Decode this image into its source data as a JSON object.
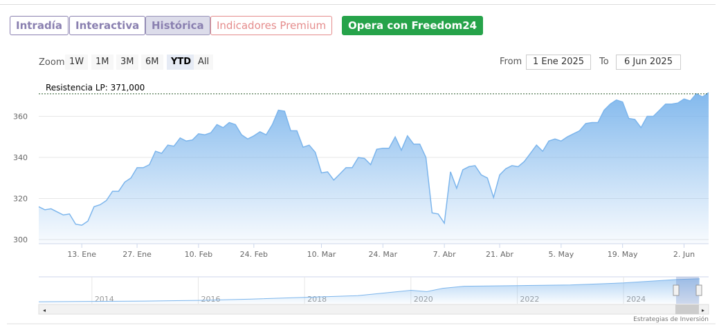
{
  "tabs": [
    "Intradía",
    "Interactiva",
    "Histórica",
    "Indicadores Premium",
    "Opera con Freedom24"
  ],
  "selected_tab": 2,
  "zoom": {
    "label": "Zoom",
    "buttons": [
      "1W",
      "1M",
      "3M",
      "6M",
      "YTD",
      "All"
    ],
    "selected": 4
  },
  "range": {
    "from_label": "From",
    "from": "1 Ene 2025",
    "to_label": "To",
    "to": "6 Jun 2025"
  },
  "credits": "Estrategias de Inversión",
  "chart_data": [
    {
      "type": "area",
      "color": "#7cb5ec",
      "categories": [
        null,
        null,
        null,
        null,
        null,
        null,
        null,
        "13. Ene",
        null,
        null,
        null,
        null,
        null,
        null,
        null,
        null,
        "27. Ene",
        null,
        null,
        null,
        null,
        null,
        null,
        null,
        null,
        null,
        "10. Feb",
        null,
        null,
        null,
        null,
        null,
        null,
        null,
        null,
        "24. Feb",
        null,
        null,
        null,
        null,
        null,
        null,
        null,
        null,
        null,
        null,
        "10. Mar",
        null,
        null,
        null,
        null,
        null,
        null,
        null,
        null,
        null,
        "24. Mar",
        null,
        null,
        null,
        null,
        null,
        null,
        null,
        null,
        null,
        "7. Abr",
        null,
        null,
        null,
        null,
        null,
        null,
        null,
        null,
        "21. Abr",
        null,
        null,
        null,
        null,
        null,
        null,
        null,
        null,
        null,
        "5. May",
        null,
        null,
        null,
        null,
        null,
        null,
        null,
        null,
        null,
        "19. May",
        null,
        null,
        null,
        null,
        null,
        null,
        null,
        null,
        null,
        "2. Jun",
        null,
        null,
        null,
        null
      ],
      "values": [
        316,
        314.5,
        315,
        313.5,
        312,
        312.5,
        307.5,
        307,
        309,
        316,
        317,
        319,
        323.5,
        323.5,
        328,
        330,
        335,
        335,
        336.5,
        343,
        342,
        346,
        345.5,
        349.5,
        348,
        348.5,
        351.5,
        351,
        352,
        356,
        354.5,
        357,
        356,
        351,
        349,
        350.5,
        352.5,
        351,
        356,
        363,
        362.5,
        353,
        353,
        345,
        346,
        342.5,
        332.5,
        333,
        329,
        332,
        335,
        335,
        340,
        339.5,
        336.5,
        344,
        344.5,
        344.5,
        350,
        343.5,
        350.5,
        346.5,
        346.5,
        340,
        313,
        312.5,
        308,
        333,
        325,
        334,
        335.5,
        336,
        331.5,
        330,
        320.5,
        331.5,
        334.5,
        336,
        335.5,
        338,
        342,
        346,
        343,
        348,
        349,
        348,
        350,
        351.5,
        353,
        356.5,
        357,
        357,
        363,
        366,
        368,
        367,
        359,
        358.5,
        354.5,
        360,
        360,
        363,
        366,
        366,
        366.5,
        368.5,
        367.5,
        371,
        369.5,
        371.5
      ],
      "ylim": [
        298,
        378
      ],
      "yticks": [
        300,
        320,
        340,
        360
      ],
      "grid": true,
      "annotation": {
        "label": "Resistencia LP: 371,000",
        "value": 371
      }
    },
    {
      "type": "navigator",
      "color": "#7cb5ec",
      "x": [
        2013,
        2014,
        2015,
        2016,
        2017,
        2018,
        2019,
        2020,
        2020.3,
        2020.6,
        2021,
        2022,
        2023,
        2024,
        2025,
        2025.43
      ],
      "values": [
        30,
        35,
        40,
        50,
        70,
        95,
        120,
        200,
        180,
        230,
        260,
        270,
        280,
        310,
        360,
        371
      ],
      "xlim": [
        2013,
        2025.6
      ],
      "ylim": [
        0,
        400
      ],
      "xticks": [
        2014,
        2016,
        2018,
        2020,
        2022,
        2024
      ]
    }
  ]
}
